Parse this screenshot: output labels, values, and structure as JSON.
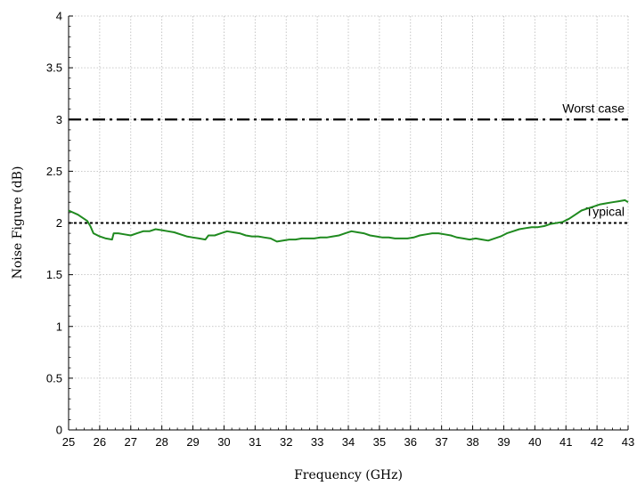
{
  "chart_data": {
    "type": "line",
    "xlabel": "Frequency (GHz)",
    "ylabel": "Noise Figure (dB)",
    "xlim": [
      25,
      43
    ],
    "ylim": [
      0,
      4
    ],
    "x_ticks": [
      25,
      26,
      27,
      28,
      29,
      30,
      31,
      32,
      33,
      34,
      35,
      36,
      37,
      38,
      39,
      40,
      41,
      42,
      43
    ],
    "y_ticks": [
      "0",
      "0.5",
      "1",
      "1.5",
      "2",
      "2.5",
      "3",
      "3.5",
      "4"
    ],
    "grid": true,
    "reference_lines": [
      {
        "label": "Worst case",
        "y": 3.0,
        "style": "dash-dot",
        "color": "#000000"
      },
      {
        "label": "Typical",
        "y": 2.0,
        "style": "dotted",
        "color": "#000000"
      }
    ],
    "series": [
      {
        "color": "#1f8a1f",
        "x": [
          25.0,
          25.3,
          25.6,
          25.7,
          25.8,
          26.0,
          26.2,
          26.4,
          26.45,
          26.6,
          26.8,
          27.0,
          27.2,
          27.4,
          27.6,
          27.8,
          28.0,
          28.2,
          28.4,
          28.6,
          28.8,
          29.0,
          29.2,
          29.4,
          29.5,
          29.7,
          29.9,
          30.1,
          30.3,
          30.5,
          30.7,
          30.9,
          31.1,
          31.3,
          31.5,
          31.7,
          31.9,
          32.1,
          32.3,
          32.5,
          32.7,
          32.9,
          33.1,
          33.3,
          33.5,
          33.7,
          33.9,
          34.1,
          34.3,
          34.5,
          34.7,
          34.9,
          35.1,
          35.3,
          35.5,
          35.7,
          35.9,
          36.1,
          36.3,
          36.5,
          36.7,
          36.9,
          37.1,
          37.3,
          37.5,
          37.7,
          37.9,
          38.1,
          38.3,
          38.5,
          38.7,
          38.9,
          39.1,
          39.3,
          39.5,
          39.7,
          39.9,
          40.1,
          40.3,
          40.5,
          40.7,
          40.9,
          41.1,
          41.3,
          41.5,
          41.7,
          41.9,
          42.1,
          42.3,
          42.5,
          42.7,
          42.9,
          43.0
        ],
        "values": [
          2.12,
          2.08,
          2.02,
          1.97,
          1.9,
          1.87,
          1.85,
          1.84,
          1.9,
          1.9,
          1.89,
          1.88,
          1.9,
          1.92,
          1.92,
          1.94,
          1.93,
          1.92,
          1.91,
          1.89,
          1.87,
          1.86,
          1.85,
          1.84,
          1.88,
          1.88,
          1.9,
          1.92,
          1.91,
          1.9,
          1.88,
          1.87,
          1.87,
          1.86,
          1.85,
          1.82,
          1.83,
          1.84,
          1.84,
          1.85,
          1.85,
          1.85,
          1.86,
          1.86,
          1.87,
          1.88,
          1.9,
          1.92,
          1.91,
          1.9,
          1.88,
          1.87,
          1.86,
          1.86,
          1.85,
          1.85,
          1.85,
          1.86,
          1.88,
          1.89,
          1.9,
          1.9,
          1.89,
          1.88,
          1.86,
          1.85,
          1.84,
          1.85,
          1.84,
          1.83,
          1.85,
          1.87,
          1.9,
          1.92,
          1.94,
          1.95,
          1.96,
          1.96,
          1.97,
          1.99,
          2.0,
          2.01,
          2.04,
          2.08,
          2.12,
          2.14,
          2.16,
          2.18,
          2.19,
          2.2,
          2.21,
          2.22,
          2.2
        ]
      }
    ]
  }
}
